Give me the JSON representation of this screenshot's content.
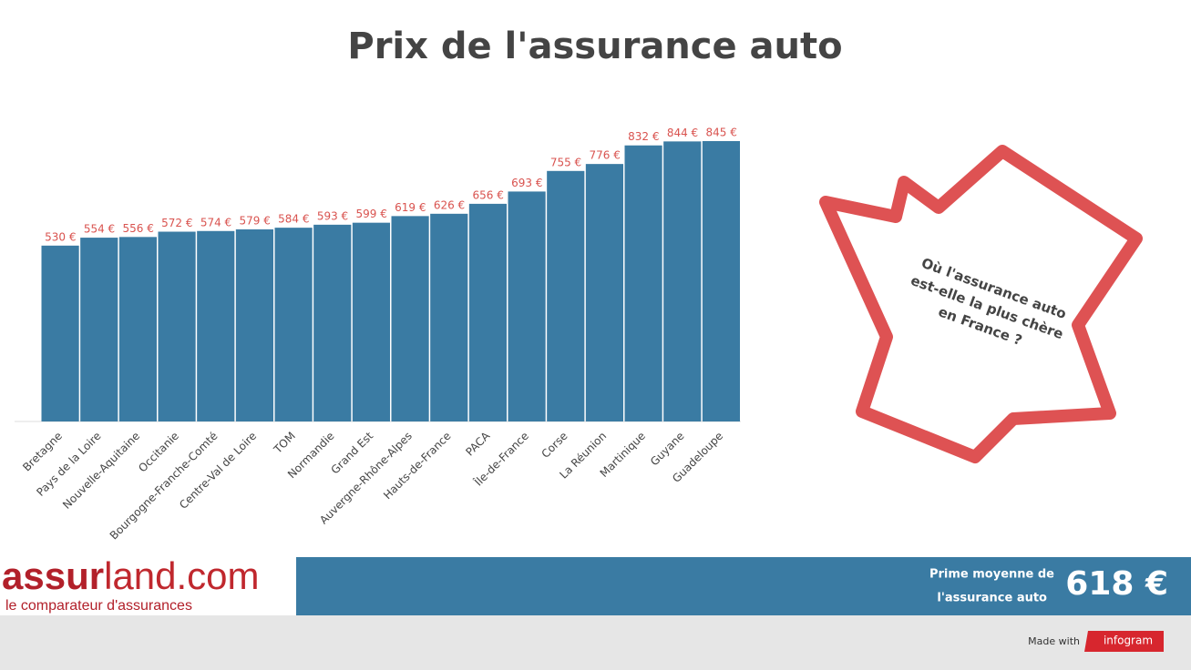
{
  "chart_data": {
    "type": "bar",
    "title": "Prix de l'assurance auto",
    "categories": [
      "Bretagne",
      "Pays de la Loire",
      "Nouvelle-Aquitaine",
      "Occitanie",
      "Bourgogne-Franche-Comté",
      "Centre-Val de Loire",
      "TOM",
      "Normandie",
      "Grand Est",
      "Auvergne-Rhône-Alpes",
      "Hauts-de-France",
      "PACA",
      "Île-de-France",
      "Corse",
      "La Réunion",
      "Martinique",
      "Guyane",
      "Guadeloupe"
    ],
    "values": [
      530,
      554,
      556,
      572,
      574,
      579,
      584,
      593,
      599,
      619,
      626,
      656,
      693,
      755,
      776,
      832,
      844,
      845
    ],
    "value_labels": [
      "530 €",
      "554 €",
      "556 €",
      "572 €",
      "574 €",
      "579 €",
      "584 €",
      "593 €",
      "599 €",
      "619 €",
      "626 €",
      "656 €",
      "693 €",
      "755 €",
      "776 €",
      "832 €",
      "844 €",
      "845 €"
    ],
    "color": "#3a7ba3",
    "label_color": "#d9534f"
  },
  "callout": {
    "lines": [
      "Où l'assurance auto",
      "est-elle la plus chère",
      "en France ?"
    ]
  },
  "logo": {
    "part1": "assur",
    "part2": "land.com",
    "tagline": "le comparateur d'assurances"
  },
  "banner": {
    "label_lines": [
      "Prime moyenne de",
      "l'assurance auto"
    ],
    "value": "618 €"
  },
  "footer": {
    "made_with": "Made with",
    "brand": "infogram"
  }
}
